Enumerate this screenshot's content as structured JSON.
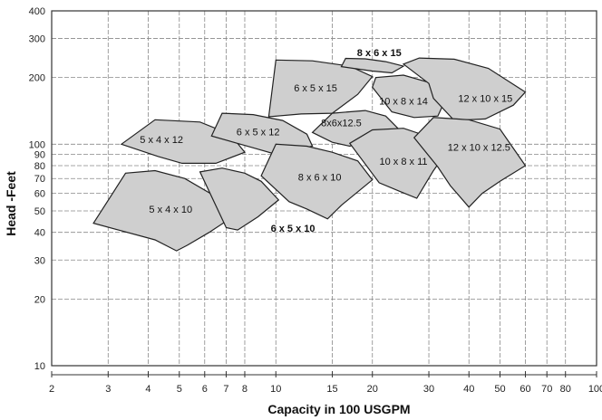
{
  "chart_data": {
    "type": "area",
    "title": "",
    "xlabel": "Capacity in 100 USGPM",
    "ylabel": "Head -Feet",
    "x_scale": "log",
    "y_scale": "log",
    "xlim": [
      2,
      100
    ],
    "ylim": [
      10,
      400
    ],
    "grid": true,
    "x_tick_labels": [
      "2",
      "3",
      "4",
      "5",
      "6",
      "7",
      "8",
      "10",
      "15",
      "20",
      "30",
      "40",
      "50",
      "60",
      "70",
      "80",
      "100"
    ],
    "y_tick_labels": [
      "10",
      "20",
      "30",
      "40",
      "50",
      "60",
      "70",
      "80",
      "90",
      "100",
      "200",
      "300",
      "400"
    ],
    "colors": {
      "region_fill": "#cfcfcf",
      "grid": "#888888"
    },
    "series": [
      {
        "name": "5 x 4 x 10",
        "points": [
          [
            2.7,
            44
          ],
          [
            3.4,
            74
          ],
          [
            4.2,
            76
          ],
          [
            5.2,
            70
          ],
          [
            6.5,
            58
          ],
          [
            7.5,
            48
          ],
          [
            6.2,
            40
          ],
          [
            5.3,
            35
          ],
          [
            4.9,
            33
          ],
          [
            4.2,
            37
          ]
        ]
      },
      {
        "name": "6 x 5 x 10",
        "points": [
          [
            5.8,
            75
          ],
          [
            6.8,
            78
          ],
          [
            8.0,
            74
          ],
          [
            9.0,
            68
          ],
          [
            10.2,
            56
          ],
          [
            8.8,
            47
          ],
          [
            7.6,
            41
          ],
          [
            7.0,
            42
          ]
        ]
      },
      {
        "name": "5 x 4 x 12",
        "points": [
          [
            3.3,
            100
          ],
          [
            4.2,
            129
          ],
          [
            5.8,
            126
          ],
          [
            7.2,
            111
          ],
          [
            8.0,
            92
          ],
          [
            6.5,
            82
          ],
          [
            5.1,
            82
          ],
          [
            4.3,
            88
          ]
        ]
      },
      {
        "name": "6 x 5 x 12",
        "points": [
          [
            6.3,
            109
          ],
          [
            6.8,
            138
          ],
          [
            8.5,
            136
          ],
          [
            10.5,
            128
          ],
          [
            12.5,
            111
          ],
          [
            13.0,
            98
          ],
          [
            10.0,
            90
          ],
          [
            8.8,
            95
          ]
        ]
      },
      {
        "name": "8 x 6 x 10",
        "points": [
          [
            9.0,
            72
          ],
          [
            10.0,
            100
          ],
          [
            12.5,
            98
          ],
          [
            15.0,
            92
          ],
          [
            18.0,
            84
          ],
          [
            20.0,
            69
          ],
          [
            16.0,
            53
          ],
          [
            14.5,
            46
          ],
          [
            12.5,
            51
          ],
          [
            11.0,
            55
          ]
        ]
      },
      {
        "name": "6 x 5 x 15",
        "points": [
          [
            9.5,
            133
          ],
          [
            10.0,
            240
          ],
          [
            13.0,
            238
          ],
          [
            17.0,
            225
          ],
          [
            20.0,
            202
          ],
          [
            18.0,
            168
          ],
          [
            15.0,
            138
          ],
          [
            12.0,
            137
          ]
        ]
      },
      {
        "name": "8x6x12.5",
        "points": [
          [
            13.0,
            113
          ],
          [
            15.0,
            138
          ],
          [
            19.0,
            142
          ],
          [
            22.0,
            134
          ],
          [
            24.0,
            118
          ],
          [
            20.0,
            105
          ],
          [
            17.0,
            98
          ],
          [
            15.0,
            102
          ]
        ]
      },
      {
        "name": "8 x 6 x 15",
        "points": [
          [
            16.0,
            224
          ],
          [
            16.5,
            244
          ],
          [
            19.0,
            243
          ],
          [
            22.0,
            236
          ],
          [
            25.0,
            225
          ],
          [
            23.0,
            210
          ],
          [
            20.0,
            214
          ]
        ]
      },
      {
        "name": "10 x 8 x 14",
        "points": [
          [
            20.0,
            181
          ],
          [
            20.5,
            200
          ],
          [
            25.0,
            205
          ],
          [
            30.0,
            190
          ],
          [
            34.0,
            162
          ],
          [
            32.0,
            134
          ],
          [
            27.0,
            132
          ],
          [
            23.0,
            140
          ]
        ]
      },
      {
        "name": "10 x 8 x 11",
        "points": [
          [
            17.0,
            101
          ],
          [
            20.0,
            116
          ],
          [
            25.0,
            118
          ],
          [
            30.0,
            108
          ],
          [
            34.0,
            92
          ],
          [
            31.0,
            76
          ],
          [
            27.5,
            57
          ],
          [
            24.5,
            61
          ],
          [
            21.0,
            67
          ]
        ]
      },
      {
        "name": "12 x 10 x 15",
        "points": [
          [
            25.0,
            230
          ],
          [
            28.0,
            245
          ],
          [
            36.0,
            242
          ],
          [
            46.0,
            220
          ],
          [
            60.0,
            172
          ],
          [
            55.0,
            150
          ],
          [
            45.0,
            130
          ],
          [
            36.0,
            128
          ],
          [
            31.0,
            161
          ],
          [
            30.0,
            188
          ]
        ]
      },
      {
        "name": "12 x 10 x 12.5",
        "points": [
          [
            27.0,
            107
          ],
          [
            31.0,
            132
          ],
          [
            40.0,
            129
          ],
          [
            50.0,
            117
          ],
          [
            60.0,
            80
          ],
          [
            50.0,
            68
          ],
          [
            44.0,
            60
          ],
          [
            40.0,
            52
          ],
          [
            35.0,
            65
          ],
          [
            32.0,
            79
          ]
        ]
      }
    ],
    "labels": [
      {
        "text": "5 x 4 x 10",
        "x": 4.7,
        "y": 51
      },
      {
        "text": "6 x 5 x 10",
        "x": 11.3,
        "y": 41.8,
        "bold": true
      },
      {
        "text": "5 x 4 x 12",
        "x": 4.4,
        "y": 105
      },
      {
        "text": "6 x 5 x 12",
        "x": 8.8,
        "y": 114
      },
      {
        "text": "8 x 6 x 10",
        "x": 13.7,
        "y": 71
      },
      {
        "text": "6 x 5 x 15",
        "x": 13.3,
        "y": 180
      },
      {
        "text": "8x6x12.5",
        "x": 16.0,
        "y": 125
      },
      {
        "text": "8 x 6 x 15",
        "x": 21.0,
        "y": 259,
        "bold": true
      },
      {
        "text": "10 x 8 x 14",
        "x": 25.0,
        "y": 157
      },
      {
        "text": "10 x 8 x 11",
        "x": 25.0,
        "y": 84
      },
      {
        "text": "12 x 10 x 15",
        "x": 45.0,
        "y": 161
      },
      {
        "text": "12 x 10 x 12.5",
        "x": 43.0,
        "y": 97
      }
    ]
  }
}
